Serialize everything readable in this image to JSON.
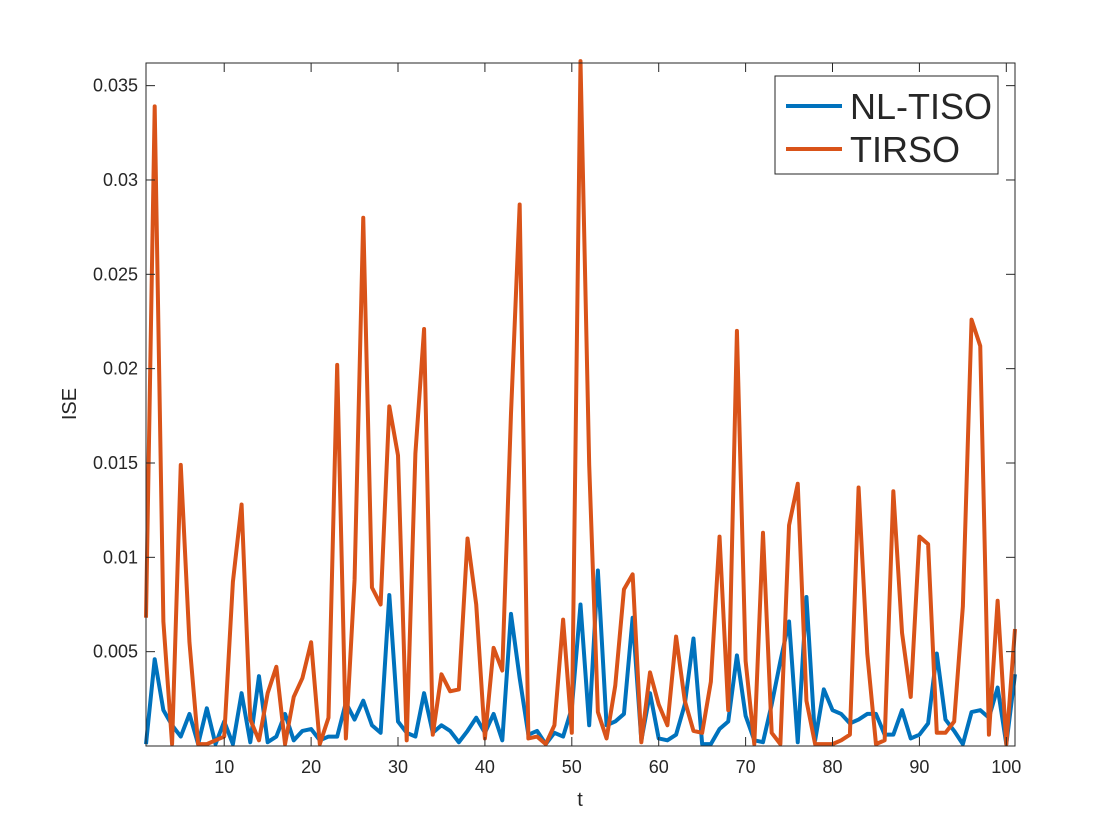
{
  "chart_data": {
    "type": "line",
    "title": "",
    "xlabel": "t",
    "ylabel": "ISE",
    "xlim": [
      1,
      101
    ],
    "ylim": [
      0,
      0.0362
    ],
    "xticks": [
      10,
      20,
      30,
      40,
      50,
      60,
      70,
      80,
      90,
      100
    ],
    "yticks": [
      0.005,
      0.01,
      0.015,
      0.02,
      0.025,
      0.03,
      0.035
    ],
    "yticklabels": [
      "0.005",
      "0.01",
      "0.015",
      "0.02",
      "0.025",
      "0.03",
      "0.035"
    ],
    "grid": false,
    "legend": "top-right",
    "series": [
      {
        "name": "NL-TISO",
        "color": "#0072BD",
        "x": [
          1,
          2,
          3,
          4,
          5,
          6,
          7,
          8,
          9,
          10,
          11,
          12,
          13,
          14,
          15,
          16,
          17,
          18,
          19,
          20,
          21,
          22,
          23,
          24,
          25,
          26,
          27,
          28,
          29,
          30,
          31,
          32,
          33,
          34,
          35,
          36,
          37,
          38,
          39,
          40,
          41,
          42,
          43,
          44,
          45,
          46,
          47,
          48,
          49,
          50,
          51,
          52,
          53,
          54,
          55,
          56,
          57,
          58,
          59,
          60,
          61,
          62,
          63,
          64,
          65,
          66,
          67,
          68,
          69,
          70,
          71,
          72,
          73,
          74,
          75,
          76,
          77,
          78,
          79,
          80,
          81,
          82,
          83,
          84,
          85,
          86,
          87,
          88,
          89,
          90,
          91,
          92,
          93,
          94,
          95,
          96,
          97,
          98,
          99,
          100,
          101
        ],
        "values": [
          0.0001,
          0.0046,
          0.0019,
          0.0011,
          0.0005,
          0.0017,
          0.0001,
          0.002,
          0.0001,
          0.0013,
          0.0001,
          0.0028,
          0.0002,
          0.0037,
          0.0002,
          0.0005,
          0.0017,
          0.0003,
          0.0008,
          0.0009,
          0.0003,
          0.0005,
          0.0005,
          0.0023,
          0.0014,
          0.0024,
          0.0011,
          0.0007,
          0.008,
          0.0013,
          0.0007,
          0.0005,
          0.0028,
          0.0007,
          0.0011,
          0.0008,
          0.0002,
          0.0008,
          0.0015,
          0.0007,
          0.0017,
          0.0003,
          0.007,
          0.0036,
          0.0006,
          0.0008,
          0.0001,
          0.0007,
          0.0005,
          0.002,
          0.0075,
          0.0011,
          0.0093,
          0.0011,
          0.0013,
          0.0017,
          0.0068,
          0.0003,
          0.0028,
          0.0004,
          0.0003,
          0.0006,
          0.0022,
          0.0057,
          0.0001,
          0.0001,
          0.0009,
          0.0013,
          0.0048,
          0.0016,
          0.0003,
          0.0002,
          0.0022,
          0.0045,
          0.0066,
          0.0002,
          0.0079,
          0.0003,
          0.003,
          0.0019,
          0.0017,
          0.0012,
          0.0014,
          0.0017,
          0.0017,
          0.0006,
          0.0006,
          0.0019,
          0.0004,
          0.0006,
          0.0012,
          0.0049,
          0.0014,
          0.0008,
          0.0001,
          0.0018,
          0.0019,
          0.0015,
          0.0031,
          0.0001,
          0.0038
        ]
      },
      {
        "name": "TIRSO",
        "color": "#D95319",
        "x": [
          1,
          2,
          3,
          4,
          5,
          6,
          7,
          8,
          9,
          10,
          11,
          12,
          13,
          14,
          15,
          16,
          17,
          18,
          19,
          20,
          21,
          22,
          23,
          24,
          25,
          26,
          27,
          28,
          29,
          30,
          31,
          32,
          33,
          34,
          35,
          36,
          37,
          38,
          39,
          40,
          41,
          42,
          43,
          44,
          45,
          46,
          47,
          48,
          49,
          50,
          51,
          52,
          53,
          54,
          55,
          56,
          57,
          58,
          59,
          60,
          61,
          62,
          63,
          64,
          65,
          66,
          67,
          68,
          69,
          70,
          71,
          72,
          73,
          74,
          75,
          76,
          77,
          78,
          79,
          80,
          81,
          82,
          83,
          84,
          85,
          86,
          87,
          88,
          89,
          90,
          91,
          92,
          93,
          94,
          95,
          96,
          97,
          98,
          99,
          100,
          101
        ],
        "values": [
          0.0068,
          0.0339,
          0.0066,
          0.0001,
          0.0149,
          0.0055,
          0.0001,
          0.0001,
          0.0003,
          0.0005,
          0.0087,
          0.0128,
          0.0014,
          0.0003,
          0.0028,
          0.0042,
          0.0001,
          0.0026,
          0.0036,
          0.0055,
          0.0001,
          0.0015,
          0.0202,
          0.0004,
          0.0088,
          0.028,
          0.0084,
          0.0075,
          0.018,
          0.0154,
          0.0003,
          0.0155,
          0.0221,
          0.0006,
          0.0038,
          0.0029,
          0.003,
          0.011,
          0.0075,
          0.0004,
          0.0052,
          0.004,
          0.0176,
          0.0287,
          0.0004,
          0.0005,
          0.0001,
          0.0011,
          0.0067,
          0.0007,
          0.0363,
          0.0149,
          0.0018,
          0.0004,
          0.0032,
          0.0083,
          0.0091,
          0.0002,
          0.0039,
          0.0022,
          0.0011,
          0.0058,
          0.0024,
          0.0008,
          0.0007,
          0.0034,
          0.0111,
          0.0019,
          0.022,
          0.0045,
          0.0001,
          0.0113,
          0.0007,
          0.0001,
          0.0117,
          0.0139,
          0.0024,
          0.0001,
          0.0001,
          0.0001,
          0.0003,
          0.0006,
          0.0137,
          0.0049,
          0.0001,
          0.0003,
          0.0135,
          0.006,
          0.0026,
          0.0111,
          0.0107,
          0.0007,
          0.0007,
          0.0013,
          0.0074,
          0.0226,
          0.0212,
          0.0006,
          0.0077,
          0.0001,
          0.0062
        ]
      }
    ]
  }
}
